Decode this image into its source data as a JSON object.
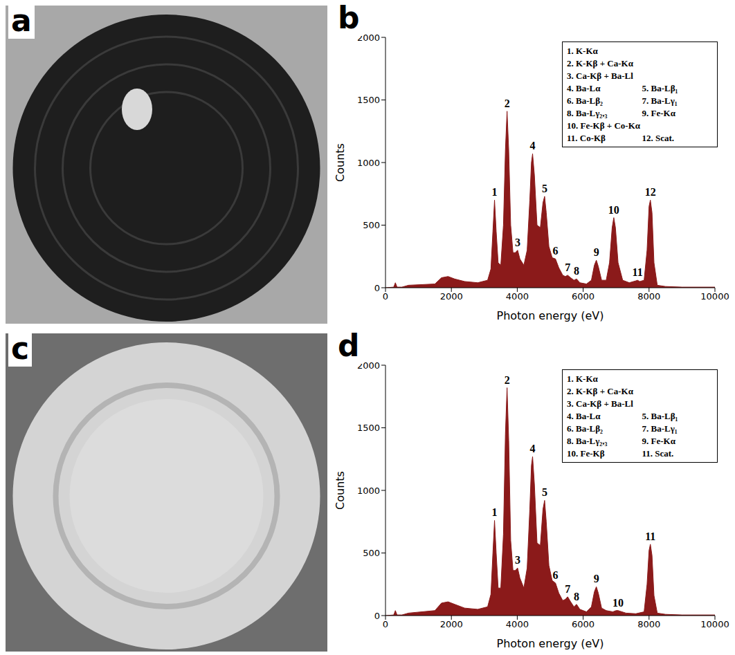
{
  "photo_panels": [
    {
      "letter": "a"
    },
    {
      "letter": "c"
    }
  ],
  "chart_data": [
    {
      "type": "area",
      "panel_letter": "b",
      "x_label": "Photon energy (eV)",
      "y_label": "Counts",
      "color": "#8b1a1a",
      "xlim": [
        0,
        10000
      ],
      "xticks": [
        0,
        2000,
        4000,
        6000,
        8000,
        10000
      ],
      "ylim": [
        0,
        2000
      ],
      "yticks": [
        0,
        500,
        1000,
        1500,
        2000
      ],
      "x": [
        0,
        250,
        300,
        350,
        500,
        700,
        1500,
        1700,
        1900,
        2100,
        2400,
        2800,
        3100,
        3200,
        3260,
        3310,
        3360,
        3420,
        3500,
        3580,
        3640,
        3690,
        3740,
        3800,
        3870,
        3940,
        4010,
        4080,
        4200,
        4300,
        4380,
        4430,
        4465,
        4520,
        4600,
        4700,
        4780,
        4830,
        4880,
        4960,
        5060,
        5160,
        5260,
        5380,
        5460,
        5530,
        5620,
        5720,
        5800,
        5900,
        6100,
        6250,
        6340,
        6400,
        6460,
        6560,
        6700,
        6800,
        6880,
        6930,
        6980,
        7060,
        7200,
        7400,
        7600,
        7650,
        7720,
        7850,
        7940,
        8000,
        8040,
        8090,
        8150,
        8250,
        8500,
        9000,
        10000
      ],
      "values": [
        0,
        5,
        40,
        5,
        5,
        20,
        30,
        80,
        90,
        70,
        50,
        40,
        60,
        150,
        450,
        700,
        450,
        200,
        180,
        500,
        1100,
        1410,
        1100,
        500,
        280,
        280,
        300,
        230,
        180,
        300,
        700,
        1000,
        1070,
        900,
        500,
        480,
        680,
        730,
        600,
        330,
        240,
        230,
        160,
        100,
        90,
        100,
        80,
        60,
        70,
        40,
        30,
        60,
        180,
        220,
        170,
        60,
        60,
        200,
        480,
        560,
        480,
        200,
        60,
        40,
        55,
        60,
        50,
        60,
        300,
        650,
        700,
        600,
        200,
        20,
        10,
        5,
        5
      ],
      "annotations": [
        {
          "text": "1",
          "x": 3310,
          "y": 700
        },
        {
          "text": "2",
          "x": 3690,
          "y": 1410
        },
        {
          "text": "3",
          "x": 4010,
          "y": 300
        },
        {
          "text": "4",
          "x": 4465,
          "y": 1070
        },
        {
          "text": "5",
          "x": 4830,
          "y": 730
        },
        {
          "text": "6",
          "x": 5160,
          "y": 230
        },
        {
          "text": "7",
          "x": 5530,
          "y": 100
        },
        {
          "text": "8",
          "x": 5800,
          "y": 70
        },
        {
          "text": "9",
          "x": 6400,
          "y": 220
        },
        {
          "text": "10",
          "x": 6930,
          "y": 560
        },
        {
          "text": "11",
          "x": 7650,
          "y": 60
        },
        {
          "text": "12",
          "x": 8040,
          "y": 700
        }
      ],
      "peak_key": [
        "1. K-Kα",
        "2. K-Kβ + Ca-Kα",
        "3. Ca-Kβ + Ba-Ll",
        "4. Ba-Lα",
        "5. Ba-Lβ₁",
        "6. Ba-Lβ₂",
        "7. Ba-Lγ₁",
        "8. Ba-Lγ₂,₃",
        "9. Fe-Kα",
        "10. Fe-Kβ + Co-Kα",
        "11. Co-Kβ",
        "12. Scat."
      ]
    },
    {
      "type": "area",
      "panel_letter": "d",
      "x_label": "Photon energy (eV)",
      "y_label": "Counts",
      "color": "#8b1a1a",
      "xlim": [
        0,
        10000
      ],
      "xticks": [
        0,
        2000,
        4000,
        6000,
        8000,
        10000
      ],
      "ylim": [
        0,
        2000
      ],
      "yticks": [
        0,
        500,
        1000,
        1500,
        2000
      ],
      "x": [
        0,
        250,
        300,
        350,
        500,
        700,
        1500,
        1700,
        1900,
        2100,
        2400,
        2800,
        3100,
        3200,
        3260,
        3310,
        3360,
        3420,
        3500,
        3580,
        3640,
        3690,
        3740,
        3800,
        3870,
        3940,
        4010,
        4080,
        4200,
        4300,
        4380,
        4430,
        4465,
        4520,
        4600,
        4700,
        4780,
        4830,
        4880,
        4960,
        5060,
        5160,
        5260,
        5380,
        5460,
        5530,
        5620,
        5720,
        5800,
        5900,
        6100,
        6250,
        6340,
        6400,
        6460,
        6560,
        6700,
        6900,
        7000,
        7060,
        7120,
        7300,
        7600,
        7850,
        7940,
        8000,
        8040,
        8090,
        8150,
        8250,
        8500,
        9000,
        10000
      ],
      "values": [
        0,
        5,
        40,
        5,
        5,
        20,
        40,
        100,
        110,
        90,
        60,
        50,
        70,
        170,
        500,
        760,
        500,
        220,
        220,
        650,
        1450,
        1820,
        1400,
        600,
        360,
        360,
        380,
        300,
        220,
        380,
        850,
        1200,
        1270,
        1050,
        580,
        560,
        850,
        920,
        750,
        400,
        280,
        260,
        180,
        120,
        130,
        150,
        110,
        70,
        90,
        50,
        30,
        70,
        190,
        230,
        180,
        60,
        40,
        30,
        40,
        40,
        35,
        20,
        15,
        30,
        250,
        520,
        570,
        480,
        160,
        20,
        10,
        5,
        5
      ],
      "annotations": [
        {
          "text": "1",
          "x": 3310,
          "y": 760
        },
        {
          "text": "2",
          "x": 3690,
          "y": 1820
        },
        {
          "text": "3",
          "x": 4010,
          "y": 380
        },
        {
          "text": "4",
          "x": 4465,
          "y": 1270
        },
        {
          "text": "5",
          "x": 4830,
          "y": 920
        },
        {
          "text": "6",
          "x": 5160,
          "y": 260
        },
        {
          "text": "7",
          "x": 5530,
          "y": 150
        },
        {
          "text": "8",
          "x": 5800,
          "y": 90
        },
        {
          "text": "9",
          "x": 6400,
          "y": 230
        },
        {
          "text": "10",
          "x": 7060,
          "y": 40
        },
        {
          "text": "11",
          "x": 8040,
          "y": 570
        }
      ],
      "peak_key": [
        "1. K-Kα",
        "2. K-Kβ + Ca-Kα",
        "3. Ca-Kβ + Ba-Ll",
        "4. Ba-Lα",
        "5. Ba-Lβ₁",
        "6. Ba-Lβ₂",
        "7. Ba-Lγ₁",
        "8. Ba-Lγ₂,₃",
        "9. Fe-Kα",
        "10. Fe-Kβ",
        "11. Scat."
      ]
    }
  ]
}
